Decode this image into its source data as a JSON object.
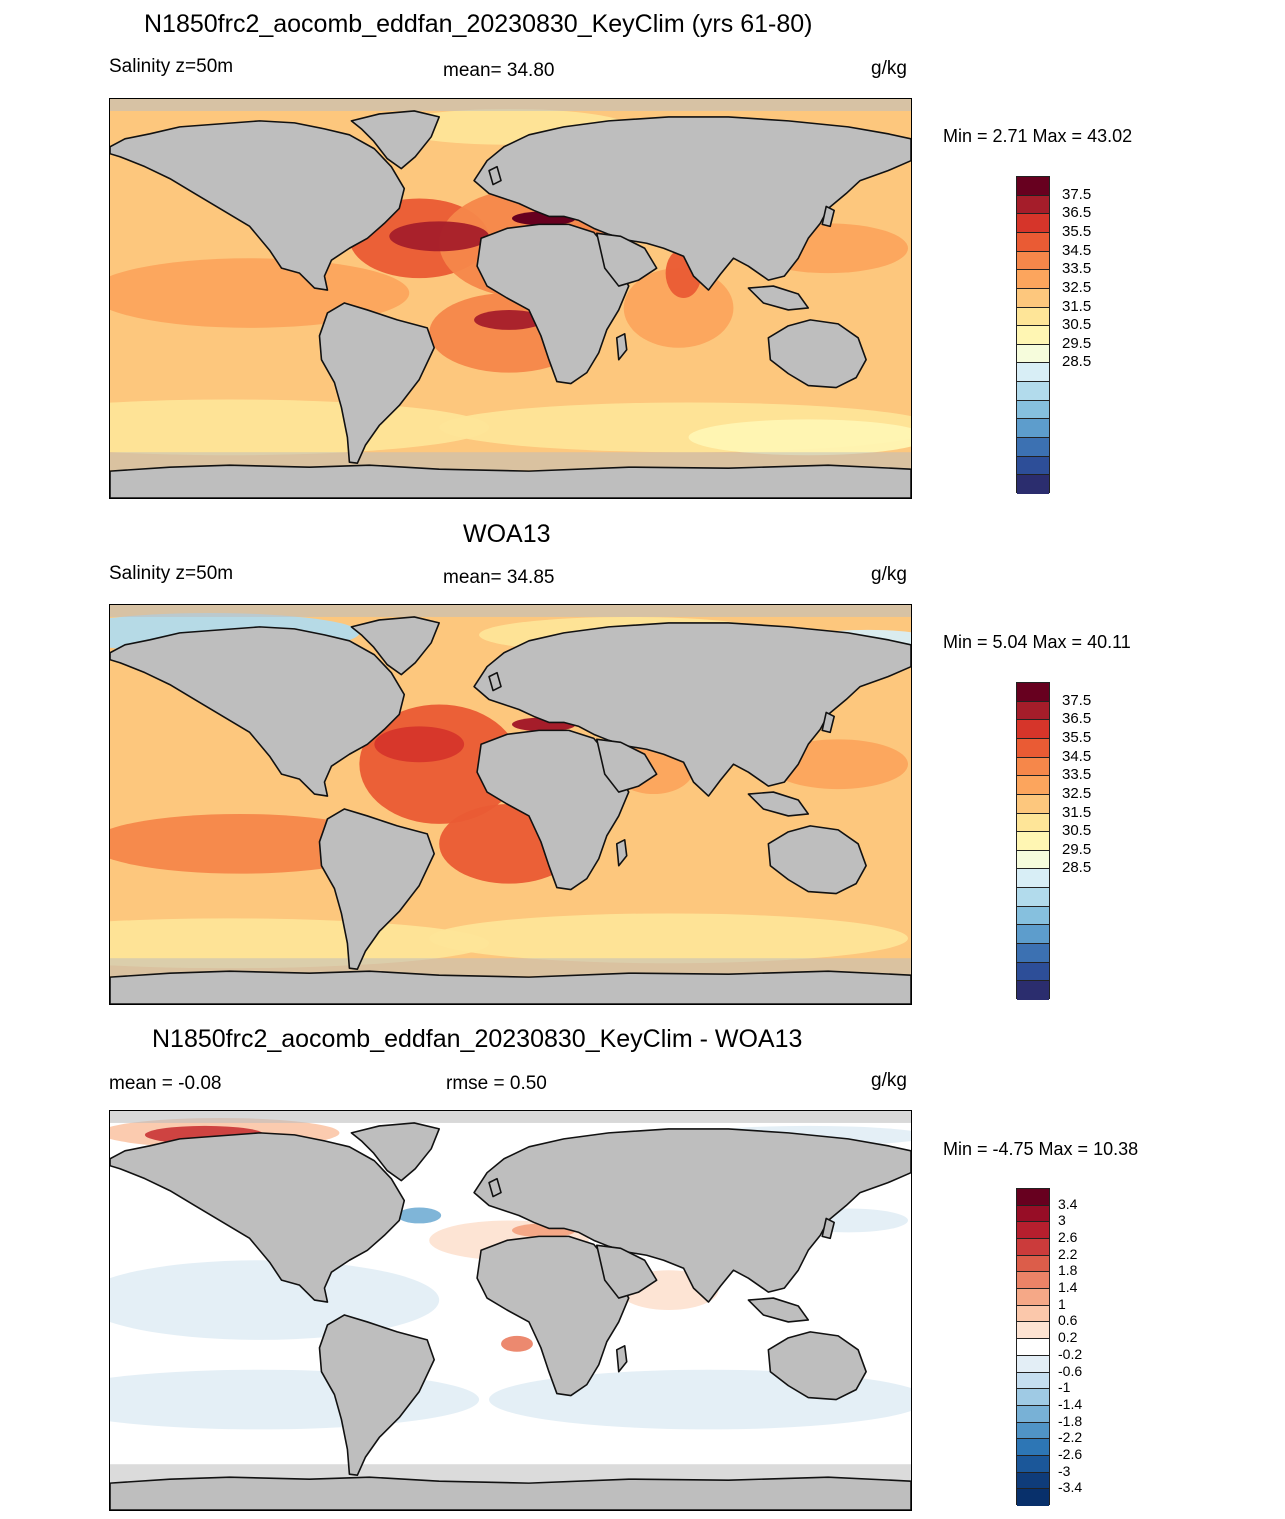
{
  "panels": [
    {
      "title": "N1850frc2_aocomb_eddfan_20230830_KeyClim (yrs 61-80)",
      "left_label": "Salinity z=50m",
      "center_label": "mean=  34.80",
      "units": "g/kg",
      "minmax": "Min =   2.71 Max =  43.02",
      "ocean_fill": "#fde49b",
      "colorbar_labels": [
        "37.5",
        "36.5",
        "35.5",
        "34.5",
        "33.5",
        "32.5",
        "31.5",
        "30.5",
        "29.5",
        "28.5"
      ]
    },
    {
      "title": "WOA13",
      "left_label": "Salinity z=50m",
      "center_label": "mean=  34.85",
      "units": "g/kg",
      "minmax": "Min =   5.04 Max =  40.11",
      "ocean_fill": "#fde49b",
      "colorbar_labels": [
        "37.5",
        "36.5",
        "35.5",
        "34.5",
        "33.5",
        "32.5",
        "31.5",
        "30.5",
        "29.5",
        "28.5"
      ]
    },
    {
      "title": "N1850frc2_aocomb_eddfan_20230830_KeyClim - WOA13",
      "left_label": "mean =  -0.08",
      "center_label": "rmse =   0.50",
      "units": "g/kg",
      "minmax": "Min =  -4.75 Max =  10.38",
      "ocean_fill": "#ffffff",
      "colorbar_labels": [
        "3.4",
        "3",
        "2.6",
        "2.2",
        "1.8",
        "1.4",
        "1",
        "0.6",
        "0.2",
        "-0.2",
        "-0.6",
        "-1",
        "-1.4",
        "-1.8",
        "-2.2",
        "-2.6",
        "-3",
        "-3.4"
      ]
    }
  ],
  "colors": {
    "land": "#bebebe",
    "coast": "#111111",
    "salinity_scale": [
      "#67001f",
      "#a51d2a",
      "#d6352a",
      "#ea5b34",
      "#f6874a",
      "#fca55d",
      "#fdc77d",
      "#fee598",
      "#fff6b3",
      "#f6fcdc",
      "#d8eef6",
      "#b2dbec",
      "#86c0de",
      "#5d9dcc",
      "#3c71b2",
      "#2d4e98",
      "#2b2d6e"
    ],
    "diff_scale": [
      "#67001f",
      "#970d26",
      "#b61f2e",
      "#cb3b3b",
      "#dc5d4a",
      "#eb8367",
      "#f5a887",
      "#fbc8ab",
      "#fde3d2",
      "#ffffff",
      "#e3eef6",
      "#c5def0",
      "#9fcae4",
      "#78b1d6",
      "#5094c6",
      "#2d76b5",
      "#1b5799",
      "#0f3c7a",
      "#08306b"
    ]
  }
}
